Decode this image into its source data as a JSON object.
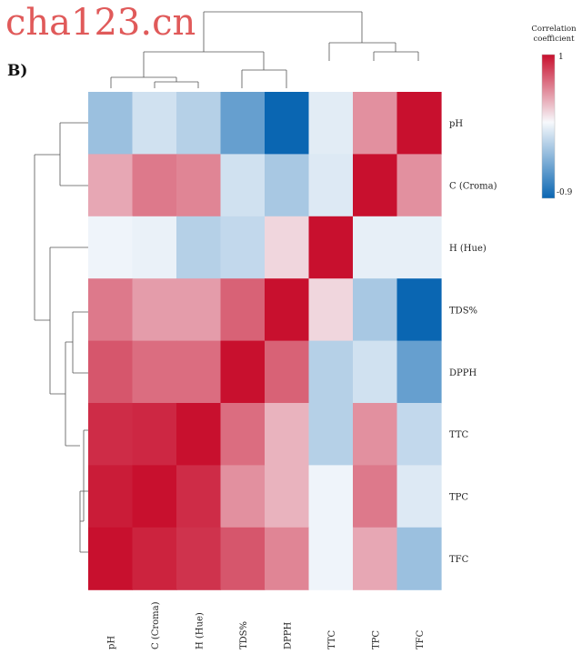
{
  "watermark": "cha123.cn",
  "panel_label": "B)",
  "legend": {
    "title_line1": "Correlation",
    "title_line2": "coefficient",
    "max_label": "1",
    "min_label": "-0.9",
    "color_low": "#0a66b2",
    "color_mid": "#f7f9fc",
    "color_high": "#c8102e"
  },
  "chart_data": {
    "type": "heatmap",
    "title": "",
    "columns": [
      "pH",
      "C (Croma)",
      "H (Hue)",
      "TDS%",
      "DPPH",
      "TTC",
      "TPC",
      "TFC"
    ],
    "rows": [
      "pH",
      "C (Croma)",
      "H (Hue)",
      "TDS%",
      "DPPH",
      "TTC",
      "TPC",
      "TFC"
    ],
    "value_range": [
      -0.9,
      1
    ],
    "values": [
      [
        -0.35,
        -0.15,
        -0.25,
        -0.55,
        -0.9,
        -0.08,
        0.45,
        1.0
      ],
      [
        0.35,
        0.55,
        0.5,
        -0.15,
        -0.3,
        -0.1,
        1.0,
        0.45
      ],
      [
        -0.03,
        -0.05,
        -0.25,
        -0.2,
        0.15,
        1.0,
        -0.06,
        -0.06
      ],
      [
        0.55,
        0.4,
        0.4,
        0.65,
        1.0,
        0.15,
        -0.3,
        -0.9
      ],
      [
        0.7,
        0.6,
        0.6,
        1.0,
        0.65,
        -0.25,
        -0.15,
        -0.55
      ],
      [
        0.88,
        0.9,
        1.0,
        0.6,
        0.3,
        -0.25,
        0.45,
        -0.2
      ],
      [
        0.95,
        1.0,
        0.88,
        0.45,
        0.3,
        -0.03,
        0.55,
        -0.1
      ],
      [
        1.0,
        0.92,
        0.85,
        0.7,
        0.5,
        -0.03,
        0.35,
        -0.35
      ]
    ],
    "row_dendrogram": "left",
    "column_dendrogram": "top"
  }
}
